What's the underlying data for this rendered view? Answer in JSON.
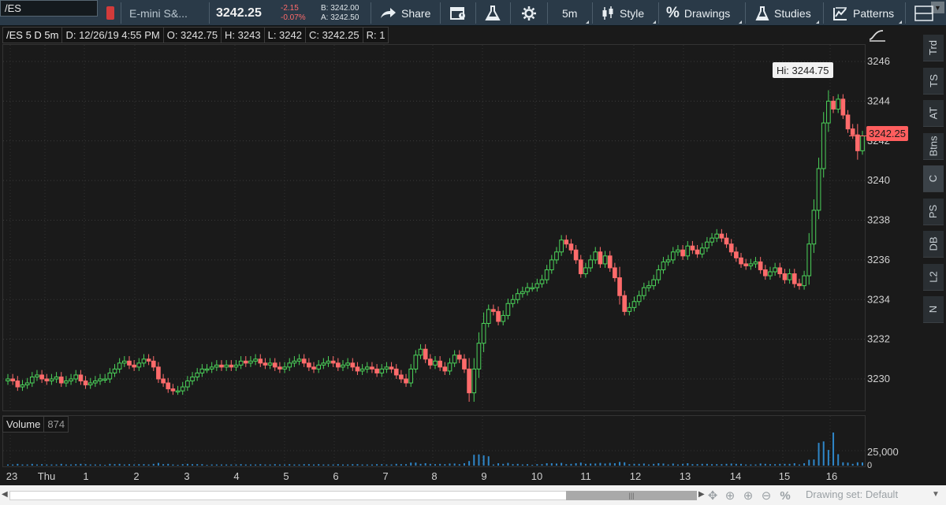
{
  "toolbar": {
    "symbol": "/ES",
    "description": "E-mini S&...",
    "last_price": "3242.25",
    "net_change": "-2.15",
    "pct_change": "-0.07%",
    "bid": "B: 3242.00",
    "ask": "A: 3242.50",
    "share_label": "Share",
    "timeframe_label": "5m",
    "style_label": "Style",
    "drawings_label": "Drawings",
    "studies_label": "Studies",
    "patterns_label": "Patterns",
    "colors": {
      "toolbar_bg": "#2a3a48",
      "negative": "#ff6b6b"
    }
  },
  "info_bar": {
    "symbol": "/ES 5 D 5m",
    "date": "D: 12/26/19 4:55 PM",
    "open": "O: 3242.75",
    "high": "H: 3243",
    "low": "L: 3242",
    "close": "C: 3242.25",
    "range": "R: 1"
  },
  "volume_pane": {
    "label": "Volume",
    "value": "874",
    "axis_label": "25,000",
    "axis_zero": "0"
  },
  "price_tag": "3242.25",
  "hi_label": "Hi: 3244.75",
  "side_tabs": [
    "Trd",
    "TS",
    "AT",
    "Btns",
    "C",
    "PS",
    "DB",
    "L2",
    "N"
  ],
  "active_side_tab": "C",
  "bottom_bar": {
    "drawing_set": "Drawing set: Default",
    "thumb_grip": "|||"
  },
  "chart_data": {
    "type": "candlestick",
    "price_axis_labels": [
      "3246",
      "3244",
      "3242",
      "3240",
      "3238",
      "3236",
      "3234",
      "3232",
      "3230"
    ],
    "ylim": [
      3228.2,
      3246.5
    ],
    "time_axis_labels": [
      "23",
      "Thu",
      "1",
      "2",
      "3",
      "4",
      "5",
      "6",
      "7",
      "8",
      "9",
      "10",
      "11",
      "12",
      "13",
      "14",
      "15",
      "16"
    ],
    "up_color": "#4bd25a",
    "down_color": "#ff6b6b",
    "last_price": 3242.25,
    "session_high": 3244.75,
    "closes": [
      3230.0,
      3229.9,
      3229.6,
      3229.7,
      3229.8,
      3230.1,
      3230.2,
      3230.0,
      3229.9,
      3230.0,
      3230.1,
      3229.8,
      3229.9,
      3230.0,
      3230.2,
      3229.9,
      3229.7,
      3229.8,
      3229.9,
      3230.0,
      3230.0,
      3230.3,
      3230.5,
      3230.8,
      3230.9,
      3230.7,
      3230.6,
      3230.8,
      3231.0,
      3230.9,
      3230.6,
      3230.0,
      3229.8,
      3229.5,
      3229.4,
      3229.4,
      3229.6,
      3229.9,
      3230.1,
      3230.3,
      3230.5,
      3230.5,
      3230.6,
      3230.7,
      3230.6,
      3230.7,
      3230.6,
      3230.7,
      3230.9,
      3230.8,
      3230.9,
      3231.0,
      3230.8,
      3230.7,
      3230.8,
      3230.6,
      3230.5,
      3230.6,
      3230.8,
      3230.9,
      3231.0,
      3230.8,
      3230.6,
      3230.5,
      3230.7,
      3230.8,
      3230.9,
      3230.8,
      3230.6,
      3230.7,
      3230.8,
      3230.6,
      3230.4,
      3230.5,
      3230.6,
      3230.5,
      3230.3,
      3230.5,
      3230.6,
      3230.5,
      3230.2,
      3230.0,
      3229.8,
      3230.5,
      3231.2,
      3231.5,
      3231.0,
      3230.7,
      3230.9,
      3230.6,
      3230.4,
      3230.8,
      3231.2,
      3231.0,
      3230.5,
      3229.3,
      3230.5,
      3231.8,
      3232.8,
      3233.5,
      3233.4,
      3232.9,
      3233.2,
      3233.8,
      3234.0,
      3234.3,
      3234.4,
      3234.6,
      3234.6,
      3234.8,
      3235.0,
      3235.5,
      3236.0,
      3236.4,
      3237.0,
      3236.8,
      3236.5,
      3236.0,
      3235.3,
      3235.6,
      3236.0,
      3236.4,
      3235.8,
      3236.2,
      3235.6,
      3235.1,
      3234.2,
      3233.4,
      3233.6,
      3233.9,
      3234.2,
      3234.6,
      3234.7,
      3235.0,
      3235.5,
      3235.9,
      3236.0,
      3236.4,
      3236.5,
      3236.2,
      3236.7,
      3236.5,
      3236.3,
      3236.6,
      3236.9,
      3237.1,
      3237.3,
      3237.1,
      3236.8,
      3236.4,
      3236.1,
      3235.8,
      3235.7,
      3235.8,
      3235.9,
      3235.5,
      3235.2,
      3235.4,
      3235.6,
      3235.3,
      3235.0,
      3235.3,
      3234.8,
      3234.7,
      3235.2,
      3236.8,
      3238.5,
      3240.6,
      3242.9,
      3244.0,
      3243.6,
      3244.1,
      3243.3,
      3242.6,
      3242.3,
      3241.5,
      3242.25
    ],
    "volume_axis": [
      0,
      25000
    ]
  }
}
